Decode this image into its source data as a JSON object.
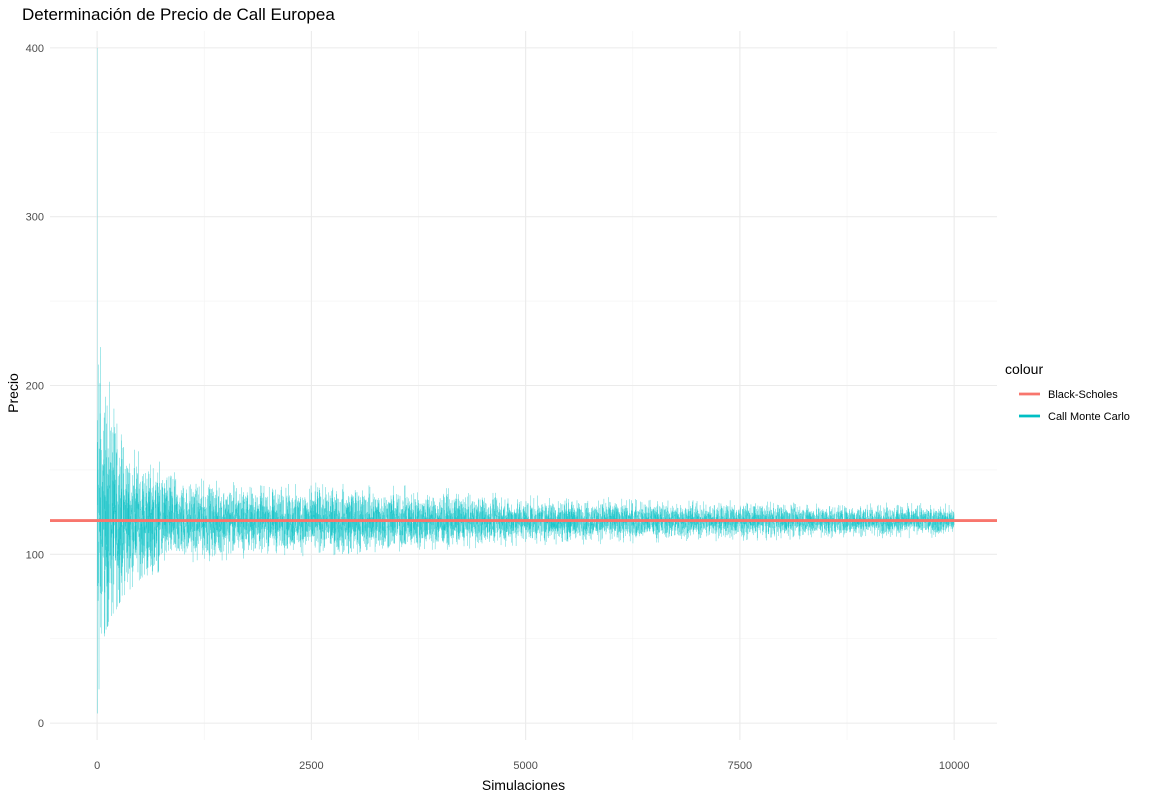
{
  "chart_data": {
    "type": "line",
    "title": "Determinación de Precio de Call Europea",
    "xlabel": "Simulaciones",
    "ylabel": "Precio",
    "xlim": [
      -550,
      10500
    ],
    "ylim": [
      -10,
      410
    ],
    "x_ticks": [
      0,
      2500,
      5000,
      7500,
      10000
    ],
    "x_tick_labels": [
      "0",
      "2500",
      "5000",
      "7500",
      "10000"
    ],
    "y_ticks": [
      0,
      100,
      200,
      300,
      400
    ],
    "y_tick_labels": [
      "0",
      "100",
      "200",
      "300",
      "400"
    ],
    "grid": true,
    "legend": {
      "title": "colour",
      "position": "right",
      "entries": [
        {
          "label": "Black-Scholes",
          "color": "#F8766D"
        },
        {
          "label": "Call Monte Carlo",
          "color": "#00BFC4"
        }
      ]
    },
    "series": [
      {
        "name": "Black-Scholes",
        "color": "#F8766D",
        "kind": "hline",
        "value": 120
      },
      {
        "name": "Call Monte Carlo",
        "color": "#00BFC4",
        "kind": "noisy-convergence",
        "n": 10000,
        "center": 120,
        "envelope": [
          {
            "x": 1,
            "lo": 5,
            "hi": 400
          },
          {
            "x": 50,
            "lo": 40,
            "hi": 240
          },
          {
            "x": 100,
            "lo": 55,
            "hi": 230
          },
          {
            "x": 300,
            "lo": 75,
            "hi": 185
          },
          {
            "x": 500,
            "lo": 85,
            "hi": 170
          },
          {
            "x": 1000,
            "lo": 95,
            "hi": 148
          },
          {
            "x": 2000,
            "lo": 98,
            "hi": 142
          },
          {
            "x": 3000,
            "lo": 100,
            "hi": 146
          },
          {
            "x": 5000,
            "lo": 105,
            "hi": 135
          },
          {
            "x": 7500,
            "lo": 108,
            "hi": 132
          },
          {
            "x": 10000,
            "lo": 110,
            "hi": 130
          }
        ]
      }
    ]
  }
}
